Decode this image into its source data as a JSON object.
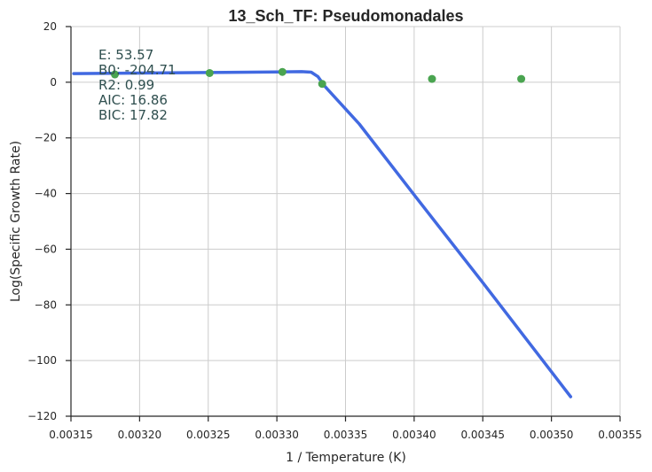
{
  "chart_data": {
    "type": "scatter",
    "title": "13_Sch_TF: Pseudomonadales",
    "xlabel": "1 / Temperature (K)",
    "ylabel": "Log(Specific Growth Rate)",
    "xlim": [
      0.00315,
      0.00355
    ],
    "ylim": [
      -120,
      20
    ],
    "xticks": [
      0.00315,
      0.0032,
      0.00325,
      0.0033,
      0.00335,
      0.0034,
      0.00345,
      0.0035,
      0.00355
    ],
    "xtick_labels": [
      "0.00315",
      "0.00320",
      "0.00325",
      "0.00330",
      "0.00335",
      "0.00340",
      "0.00345",
      "0.00350",
      "0.00355"
    ],
    "yticks": [
      20,
      0,
      -20,
      -40,
      -60,
      -80,
      -100,
      -120
    ],
    "ytick_labels": [
      "20",
      "0",
      "−20",
      "−40",
      "−60",
      "−80",
      "−100",
      "−120"
    ],
    "grid": true,
    "series": [
      {
        "kind": "points",
        "color": "#4aa450",
        "x": [
          0.003182,
          0.003251,
          0.003304,
          0.003333,
          0.003413,
          0.003478
        ],
        "y": [
          2.8,
          3.3,
          3.7,
          -0.6,
          1.2,
          1.2
        ]
      },
      {
        "kind": "fit-line",
        "color": "#4169e1",
        "x": [
          0.003152,
          0.0032,
          0.00325,
          0.0033,
          0.003318,
          0.003325,
          0.00333,
          0.003335,
          0.00336,
          0.0034,
          0.00345,
          0.003514
        ],
        "y": [
          3.1,
          3.3,
          3.5,
          3.7,
          3.8,
          3.6,
          2.0,
          -1.5,
          -15.0,
          -40.5,
          -72.0,
          -113.0
        ]
      }
    ],
    "annotations": [
      "E:  53.57",
      "B0:  -204.71",
      "R2:  0.99",
      "AIC: 16.86",
      "BIC: 17.82"
    ]
  }
}
